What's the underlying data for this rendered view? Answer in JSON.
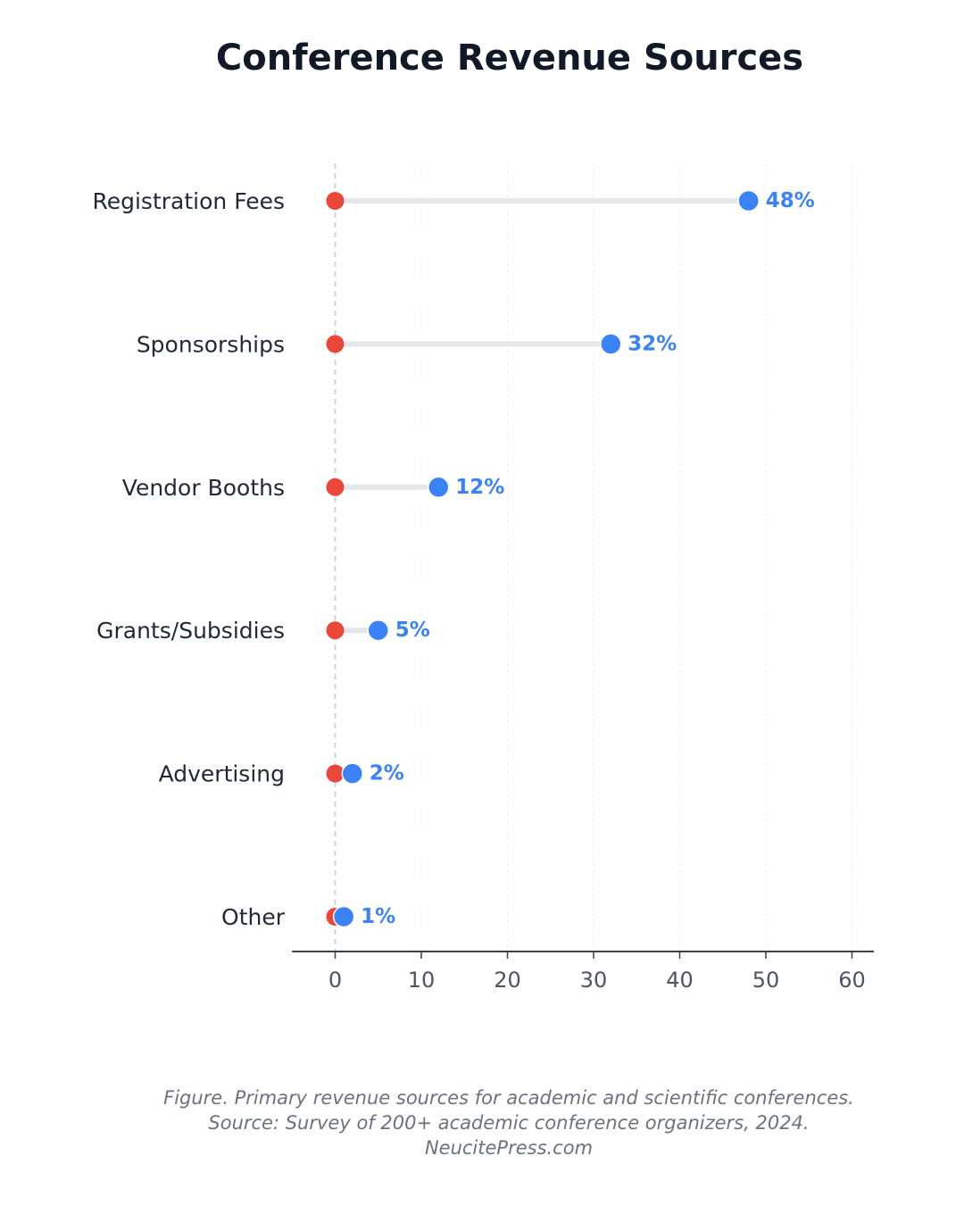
{
  "chart_data": {
    "type": "dumbbell",
    "title": "Conference Revenue Sources",
    "categories": [
      "Registration Fees",
      "Sponsorships",
      "Vendor Booths",
      "Grants/Subsidies",
      "Advertising",
      "Other"
    ],
    "start_values": [
      0,
      0,
      0,
      0,
      0,
      0
    ],
    "values": [
      48,
      32,
      12,
      5,
      2,
      1
    ],
    "value_labels": [
      "48%",
      "32%",
      "12%",
      "5%",
      "2%",
      "1%"
    ],
    "xlim": [
      -5,
      63
    ],
    "x_ticks": [
      0,
      10,
      20,
      30,
      40,
      50,
      60
    ],
    "x_tick_labels": [
      "0",
      "10",
      "20",
      "30",
      "40",
      "50",
      "60"
    ],
    "grid": "vertical dashed",
    "colors": {
      "start_marker": "#e8473a",
      "end_marker": "#3b82f6",
      "connector": "#e5e7eb",
      "value_label": "#3b82f6",
      "zero_line": "#cbd5e1",
      "axis": "#374151"
    }
  },
  "caption": {
    "line1": "Figure. Primary revenue sources for academic and scientific conferences.",
    "line2": "Source: Survey of 200+ academic conference organizers, 2024.",
    "line3": "NeucitePress.com"
  }
}
